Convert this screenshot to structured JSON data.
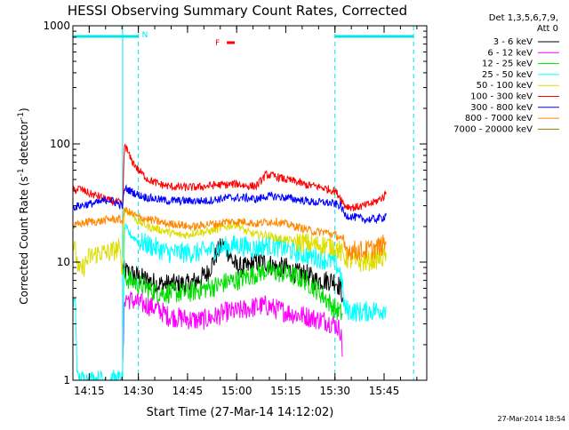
{
  "chart_data": {
    "type": "line",
    "title": "HESSI Observing Summary Count Rates, Corrected",
    "xlabel": "Start Time (27-Mar-14 14:12:02)",
    "ylabel_main": "Corrected Count Rate (s",
    "ylabel_sup1": "-1",
    "ylabel_mid": " detector",
    "ylabel_sup2": "-1",
    "ylabel_end": ")",
    "yscale": "log",
    "ylim": [
      1,
      1000
    ],
    "xlim": [
      14.167,
      15.967
    ],
    "x_ticks": [
      {
        "label": "14:15",
        "t": 14.25
      },
      {
        "label": "14:30",
        "t": 14.5
      },
      {
        "label": "14:45",
        "t": 14.75
      },
      {
        "label": "15:00",
        "t": 15.0
      },
      {
        "label": "15:15",
        "t": 15.25
      },
      {
        "label": "15:30",
        "t": 15.5
      },
      {
        "label": "15:45",
        "t": 15.75
      }
    ],
    "y_ticks": [
      {
        "label": "1",
        "v": 1
      },
      {
        "label": "10",
        "v": 10
      },
      {
        "label": "100",
        "v": 100
      },
      {
        "label": "1000",
        "v": 1000
      }
    ],
    "legend_header": [
      "Det 1,3,5,6,7,9,",
      "Att 0"
    ],
    "legend_position": "right",
    "timestamp": "27-Mar-2014 18:54",
    "annotations": [
      {
        "text": "N",
        "color": "#00e5e5"
      },
      {
        "text": "F",
        "color": "#ff0000"
      }
    ],
    "flags": {
      "night_bars": [
        [
          14.167,
          14.5
        ],
        [
          15.5,
          15.9
        ]
      ],
      "flare_bar": [
        14.95,
        14.99
      ],
      "night_boundaries": [
        14.5,
        15.5,
        15.9
      ],
      "saa_boundary": 14.42
    },
    "series": [
      {
        "name": "3 - 6 keV",
        "color": "#000000",
        "x": [
          14.42,
          14.43,
          14.46,
          14.5,
          14.55,
          14.6,
          14.65,
          14.7,
          14.75,
          14.8,
          14.85,
          14.88,
          14.9,
          14.93,
          14.95,
          14.97,
          15.0,
          15.05,
          15.1,
          15.15,
          15.2,
          15.25,
          15.3,
          15.35,
          15.4,
          15.45,
          15.5,
          15.53,
          15.54
        ],
        "y": [
          9,
          8.5,
          8,
          7.5,
          7,
          6.5,
          6.5,
          6.5,
          6.5,
          7,
          8,
          10,
          12,
          14,
          13,
          11,
          9,
          9,
          10,
          10,
          9,
          9,
          8,
          8,
          7,
          7,
          7,
          6,
          5
        ]
      },
      {
        "name": "6 - 12 keV",
        "color": "#ff00ff",
        "x": [
          14.42,
          14.43,
          14.5,
          14.55,
          14.6,
          14.65,
          14.7,
          14.75,
          14.8,
          14.85,
          14.9,
          14.95,
          15.0,
          15.05,
          15.1,
          15.15,
          15.2,
          15.25,
          15.3,
          15.35,
          15.4,
          15.45,
          15.5,
          15.53,
          15.54
        ],
        "y": [
          1.1,
          5,
          4.5,
          4.3,
          4,
          3.5,
          3.4,
          3.3,
          3.2,
          3.3,
          3.5,
          3.8,
          3.8,
          4,
          4.2,
          4.3,
          4,
          3.8,
          3.6,
          3.5,
          3.3,
          3.2,
          3,
          2.6,
          1.6
        ]
      },
      {
        "name": "12 - 25 keV",
        "color": "#00dd00",
        "x": [
          14.42,
          14.43,
          14.46,
          14.5,
          14.55,
          14.6,
          14.65,
          14.7,
          14.75,
          14.8,
          14.85,
          14.9,
          14.95,
          15.0,
          15.05,
          15.1,
          15.15,
          15.2,
          15.25,
          15.3,
          15.35,
          15.4,
          15.45,
          15.5,
          15.54
        ],
        "y": [
          8,
          7.5,
          7,
          6.5,
          6,
          5.5,
          5.5,
          5.5,
          5.5,
          5.8,
          6,
          6.3,
          6.8,
          7,
          7.5,
          8,
          8.5,
          8.2,
          8,
          7.5,
          7,
          6,
          5,
          4,
          3.6
        ]
      },
      {
        "name": "25 - 50 keV",
        "color": "#00ffff",
        "x": [
          14.167,
          14.18,
          14.19,
          14.42,
          14.43,
          14.46,
          14.5,
          14.55,
          14.6,
          14.65,
          14.7,
          14.75,
          14.8,
          14.85,
          14.9,
          14.95,
          15.0,
          15.05,
          15.1,
          15.15,
          15.2,
          15.25,
          15.3,
          15.35,
          15.4,
          15.45,
          15.5,
          15.53,
          15.55,
          15.6,
          15.65,
          15.7,
          15.75,
          15.76
        ],
        "y": [
          4.5,
          4.5,
          1,
          1,
          20,
          17,
          15,
          14,
          13,
          12,
          12,
          12,
          12,
          12.5,
          13,
          13.5,
          14,
          13.5,
          13,
          14,
          13.5,
          13,
          12,
          11.5,
          11,
          10.5,
          10,
          8,
          4,
          3.8,
          3.8,
          3.9,
          4,
          4.2
        ]
      },
      {
        "name": "50 - 100 keV",
        "color": "#dddd00",
        "x": [
          14.167,
          14.18,
          14.2,
          14.25,
          14.3,
          14.35,
          14.4,
          14.42,
          14.43,
          14.46,
          14.5,
          14.55,
          14.6,
          14.65,
          14.7,
          14.75,
          14.8,
          14.85,
          14.9,
          14.95,
          15.0,
          15.05,
          15.1,
          15.15,
          15.2,
          15.25,
          15.3,
          15.35,
          15.4,
          15.45,
          15.5,
          15.53,
          15.55,
          15.6,
          15.65,
          15.7,
          15.75,
          15.76
        ],
        "y": [
          15,
          12,
          8,
          11,
          12,
          12,
          13,
          9,
          28,
          26,
          22,
          20,
          19,
          18,
          17,
          17,
          18,
          18,
          19,
          20,
          21,
          18,
          17,
          17,
          16,
          15.5,
          15,
          14.5,
          14,
          14,
          13.5,
          12,
          11,
          10,
          10,
          10.5,
          11,
          12
        ]
      },
      {
        "name": "100 - 300 keV",
        "color": "#ff0000",
        "x": [
          14.167,
          14.2,
          14.25,
          14.3,
          14.35,
          14.4,
          14.42,
          14.43,
          14.46,
          14.5,
          14.55,
          14.6,
          14.65,
          14.7,
          14.75,
          14.8,
          14.85,
          14.9,
          14.95,
          15.0,
          15.05,
          15.1,
          15.15,
          15.2,
          15.25,
          15.3,
          15.35,
          15.4,
          15.45,
          15.5,
          15.53,
          15.55,
          15.6,
          15.65,
          15.7,
          15.75,
          15.76
        ],
        "y": [
          40,
          42,
          38,
          36,
          33,
          32,
          30,
          100,
          75,
          60,
          50,
          46,
          44,
          43,
          43,
          43,
          44,
          45,
          45,
          46,
          44,
          44,
          55,
          53,
          50,
          48,
          45,
          44,
          42,
          40,
          35,
          30,
          29,
          30,
          32,
          36,
          39
        ]
      },
      {
        "name": "300 - 800 keV",
        "color": "#0000ff",
        "x": [
          14.167,
          14.2,
          14.25,
          14.3,
          14.35,
          14.4,
          14.42,
          14.43,
          14.46,
          14.5,
          14.55,
          14.6,
          14.65,
          14.7,
          14.75,
          14.8,
          14.85,
          14.9,
          14.95,
          15.0,
          15.05,
          15.1,
          15.15,
          15.2,
          15.25,
          15.3,
          15.35,
          15.4,
          15.45,
          15.5,
          15.53,
          15.55,
          15.6,
          15.65,
          15.7,
          15.75,
          15.76
        ],
        "y": [
          29,
          30,
          31,
          32,
          34,
          31,
          30,
          42,
          40,
          37,
          35,
          34,
          33,
          33,
          33,
          33,
          33,
          34,
          35,
          35,
          35,
          34,
          36,
          36,
          35,
          34,
          33,
          32,
          32,
          31,
          30,
          25,
          24,
          23,
          23,
          24,
          26
        ]
      },
      {
        "name": "800 - 7000 keV",
        "color": "#ff8800",
        "x": [
          14.167,
          14.2,
          14.25,
          14.3,
          14.35,
          14.4,
          14.42,
          14.43,
          14.46,
          14.5,
          14.55,
          14.6,
          14.65,
          14.7,
          14.75,
          14.8,
          14.85,
          14.9,
          14.95,
          15.0,
          15.05,
          15.1,
          15.15,
          15.2,
          15.25,
          15.3,
          15.35,
          15.4,
          15.45,
          15.5,
          15.53,
          15.55,
          15.6,
          15.65,
          15.7,
          15.75,
          15.76
        ],
        "y": [
          20,
          21,
          22,
          22,
          23,
          23,
          22,
          28,
          26,
          24,
          23,
          22,
          21,
          21,
          20,
          20,
          21,
          21,
          22,
          22,
          22,
          21,
          22,
          22,
          21,
          20,
          19,
          18,
          18,
          17,
          16,
          13,
          12.5,
          12.5,
          13,
          14,
          15
        ]
      },
      {
        "name": "7000 - 20000 keV",
        "color": "#a07800",
        "x": [],
        "y": []
      }
    ]
  }
}
